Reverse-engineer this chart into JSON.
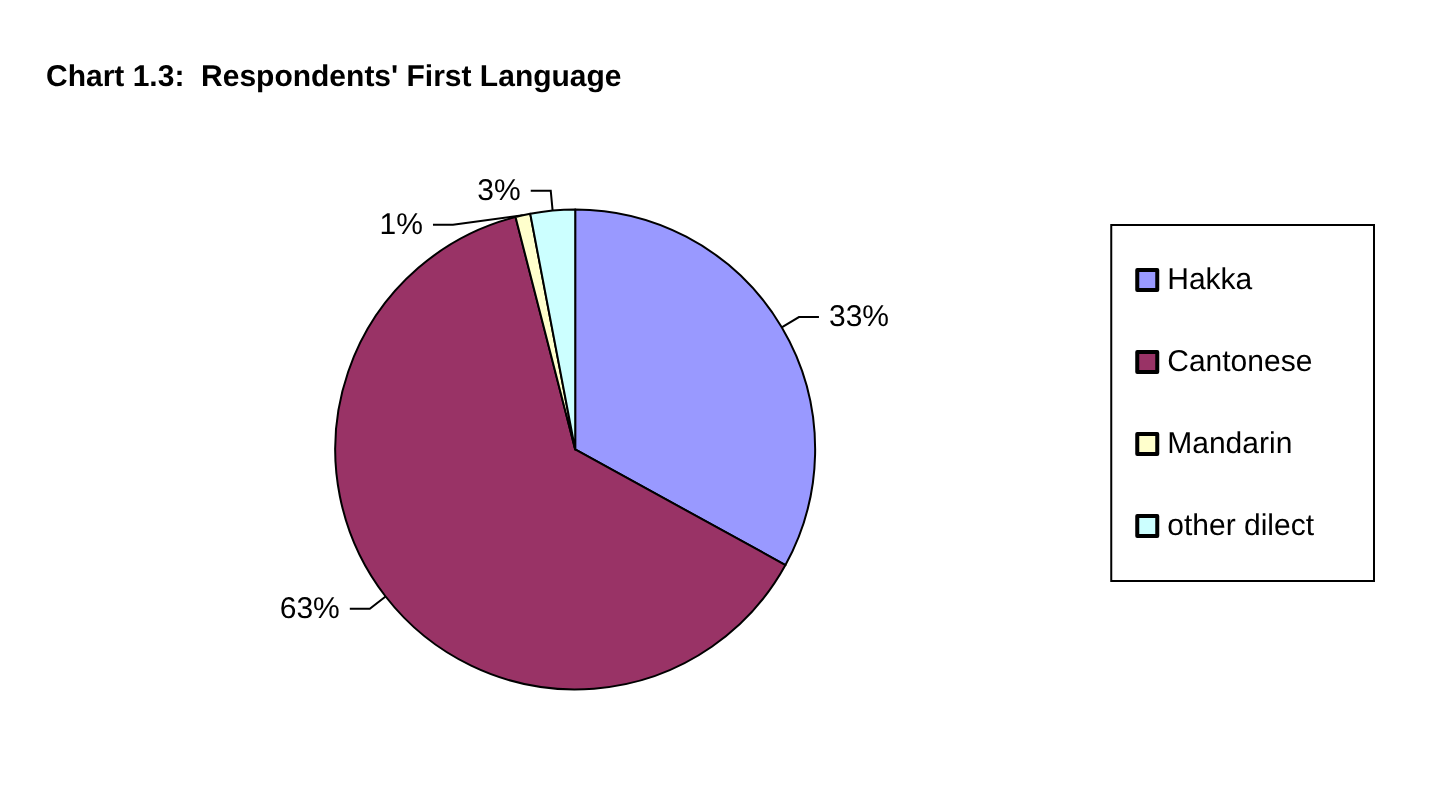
{
  "chart_data": {
    "type": "pie",
    "title": "Chart 1.3:  Respondents' First Language",
    "categories": [
      "Hakka",
      "Cantonese",
      "Mandarin",
      "other dilect"
    ],
    "values": [
      33,
      63,
      1,
      3
    ],
    "colors": [
      "#9999ff",
      "#993366",
      "#ffffcc",
      "#ccffff"
    ],
    "value_labels": [
      "33%",
      "63%",
      "1%",
      "3%"
    ],
    "legend": "right"
  }
}
